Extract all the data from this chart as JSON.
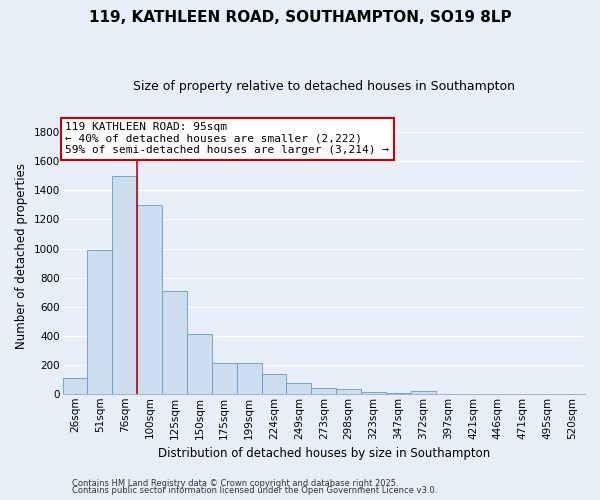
{
  "title": "119, KATHLEEN ROAD, SOUTHAMPTON, SO19 8LP",
  "subtitle": "Size of property relative to detached houses in Southampton",
  "xlabel": "Distribution of detached houses by size in Southampton",
  "ylabel": "Number of detached properties",
  "bar_labels": [
    "26sqm",
    "51sqm",
    "76sqm",
    "100sqm",
    "125sqm",
    "150sqm",
    "175sqm",
    "199sqm",
    "224sqm",
    "249sqm",
    "273sqm",
    "298sqm",
    "323sqm",
    "347sqm",
    "372sqm",
    "397sqm",
    "421sqm",
    "446sqm",
    "471sqm",
    "495sqm",
    "520sqm"
  ],
  "bar_values": [
    110,
    990,
    1500,
    1300,
    710,
    410,
    215,
    215,
    135,
    75,
    40,
    30,
    15,
    5,
    20,
    0,
    0,
    0,
    0,
    0,
    0
  ],
  "bar_color": "#ccddf0",
  "bar_edge_color": "#6699cc",
  "vline_color": "#cc0000",
  "annotation_text": "119 KATHLEEN ROAD: 95sqm\n← 40% of detached houses are smaller (2,222)\n59% of semi-detached houses are larger (3,214) →",
  "annotation_box_color": "white",
  "annotation_box_edge": "#cc0000",
  "ylim": [
    0,
    1900
  ],
  "yticks": [
    0,
    200,
    400,
    600,
    800,
    1000,
    1200,
    1400,
    1600,
    1800
  ],
  "background_color": "#e8eef8",
  "grid_color": "#ffffff",
  "footer1": "Contains HM Land Registry data © Crown copyright and database right 2025.",
  "footer2": "Contains public sector information licensed under the Open Government Licence v3.0.",
  "title_fontsize": 11,
  "subtitle_fontsize": 9,
  "xlabel_fontsize": 8.5,
  "ylabel_fontsize": 8.5,
  "tick_fontsize": 7.5,
  "annotation_fontsize": 8,
  "footer_fontsize": 6
}
